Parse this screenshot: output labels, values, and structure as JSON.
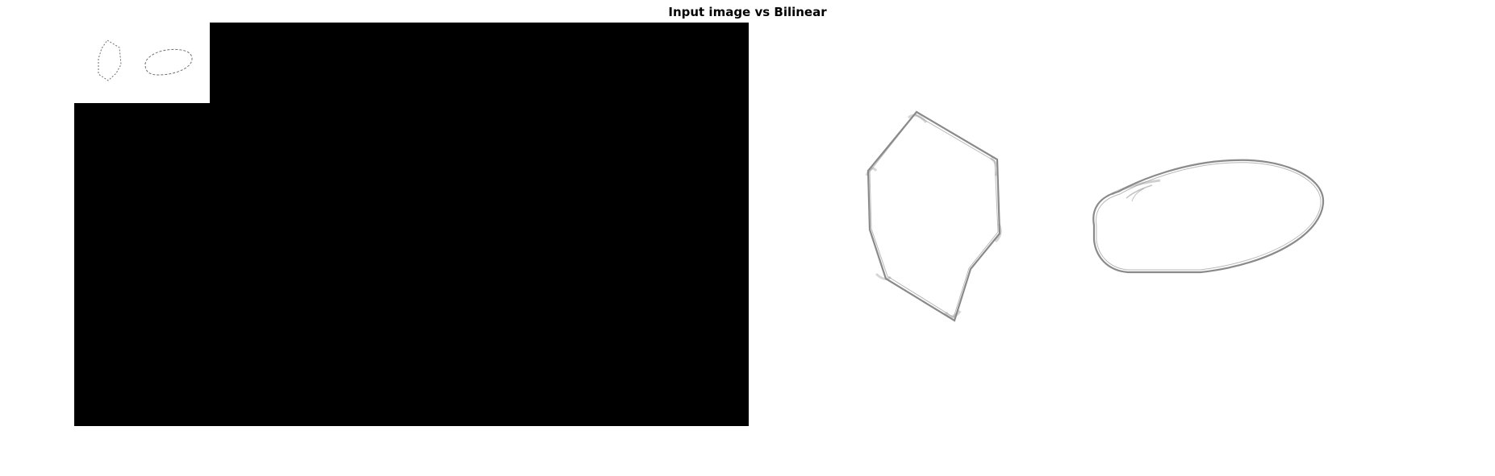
{
  "figure": {
    "title": "Input image vs Bilinear"
  },
  "colors": {
    "background": "#ffffff",
    "montage_fill": "#000000",
    "stroke": "#8a8a8a",
    "thumb_stroke": "#6e6e6e"
  }
}
